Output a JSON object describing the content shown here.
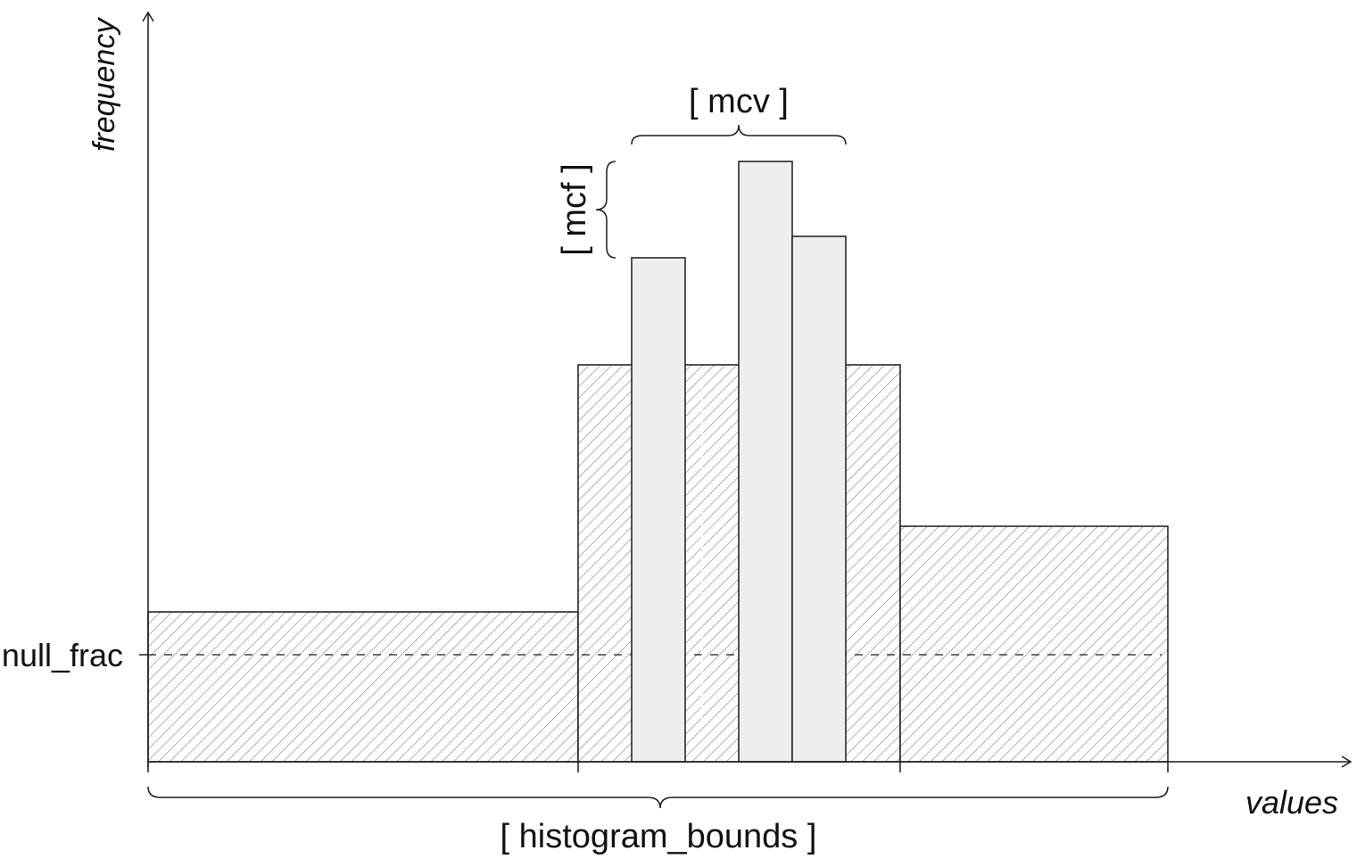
{
  "axes": {
    "y_label": "frequency",
    "x_label": "values"
  },
  "labels": {
    "mcv": "[ mcv ]",
    "mcf": "[ mcf ]",
    "null_frac": "null_frac",
    "histogram_bounds": "[ histogram_bounds ]"
  },
  "colors": {
    "line": "#1a1a1a",
    "hatch": "#8a8a8a",
    "mcv_fill": "#eeeeee",
    "background": "#ffffff"
  }
}
